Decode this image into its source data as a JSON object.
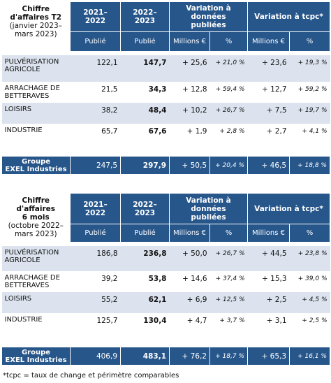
{
  "tables": [
    {
      "label_lines": [
        "Chiffre",
        "d'affaires T2"
      ],
      "period": "(janvier 2023–mars 2023)",
      "columns": [
        "2021–2022",
        "2022–2023",
        "Variation à données publiées",
        "Variation à tcpc*"
      ],
      "subcolumns": [
        "Publié",
        "Publié",
        "Millions €",
        "%",
        "Millions €",
        "%"
      ],
      "rows": [
        {
          "label": "PULVÉRISATION AGRICOLE",
          "cells": [
            "122,1",
            "147,7",
            "+ 25,6",
            "+ 21,0 %",
            "+ 23,6",
            "+ 19,3 %"
          ]
        },
        {
          "label": "ARRACHAGE DE BETTERAVES",
          "cells": [
            "21,5",
            "34,3",
            "+ 12,8",
            "+ 59,4 %",
            "+ 12,7",
            "+ 59,2 %"
          ]
        },
        {
          "label": "LOISIRS",
          "cells": [
            "38,2",
            "48,4",
            "+ 10,2",
            "+ 26,7 %",
            "+ 7,5",
            "+ 19,7 %"
          ]
        },
        {
          "label": "INDUSTRIE",
          "cells": [
            "65,7",
            "67,6",
            "+ 1,9",
            "+ 2,8 %",
            "+ 2,7",
            "+ 4,1 %"
          ]
        }
      ],
      "total": {
        "label_lines": [
          "Groupe",
          "EXEL Industries"
        ],
        "cells": [
          "247,5",
          "297,9",
          "+ 50,5",
          "+ 20,4 %",
          "+ 46,5",
          "+ 18,8 %"
        ]
      }
    },
    {
      "label_lines": [
        "Chiffre",
        "d'affaires",
        "6 mois"
      ],
      "period": "(octobre 2022–mars 2023)",
      "columns": [
        "2021–2022",
        "2022–2023",
        "Variation à données publiées",
        "Variation à tcpc*"
      ],
      "subcolumns": [
        "Publié",
        "Publié",
        "Millions €",
        "%",
        "Millions €",
        "%"
      ],
      "rows": [
        {
          "label": "PULVÉRISATION AGRICOLE",
          "cells": [
            "186,8",
            "236,8",
            "+ 50,0",
            "+ 26,7 %",
            "+ 44,5",
            "+ 23,8 %"
          ]
        },
        {
          "label": "ARRACHAGE DE BETTERAVES",
          "cells": [
            "39,2",
            "53,8",
            "+ 14,6",
            "+ 37,4 %",
            "+ 15,3",
            "+ 39,0 %"
          ]
        },
        {
          "label": "LOISIRS",
          "cells": [
            "55,2",
            "62,1",
            "+ 6,9",
            "+ 12,5 %",
            "+ 2,5",
            "+ 4,5 %"
          ]
        },
        {
          "label": "INDUSTRIE",
          "cells": [
            "125,7",
            "130,4",
            "+ 4,7",
            "+ 3,7 %",
            "+ 3,1",
            "+ 2,5 %"
          ]
        }
      ],
      "total": {
        "label_lines": [
          "Groupe",
          "EXEL Industries"
        ],
        "cells": [
          "406,9",
          "483,1",
          "+ 76,2",
          "+ 18,7 %",
          "+ 65,3",
          "+ 16,1 %"
        ]
      }
    }
  ],
  "footnote": "*tcpc = taux de change et périmètre comparables"
}
